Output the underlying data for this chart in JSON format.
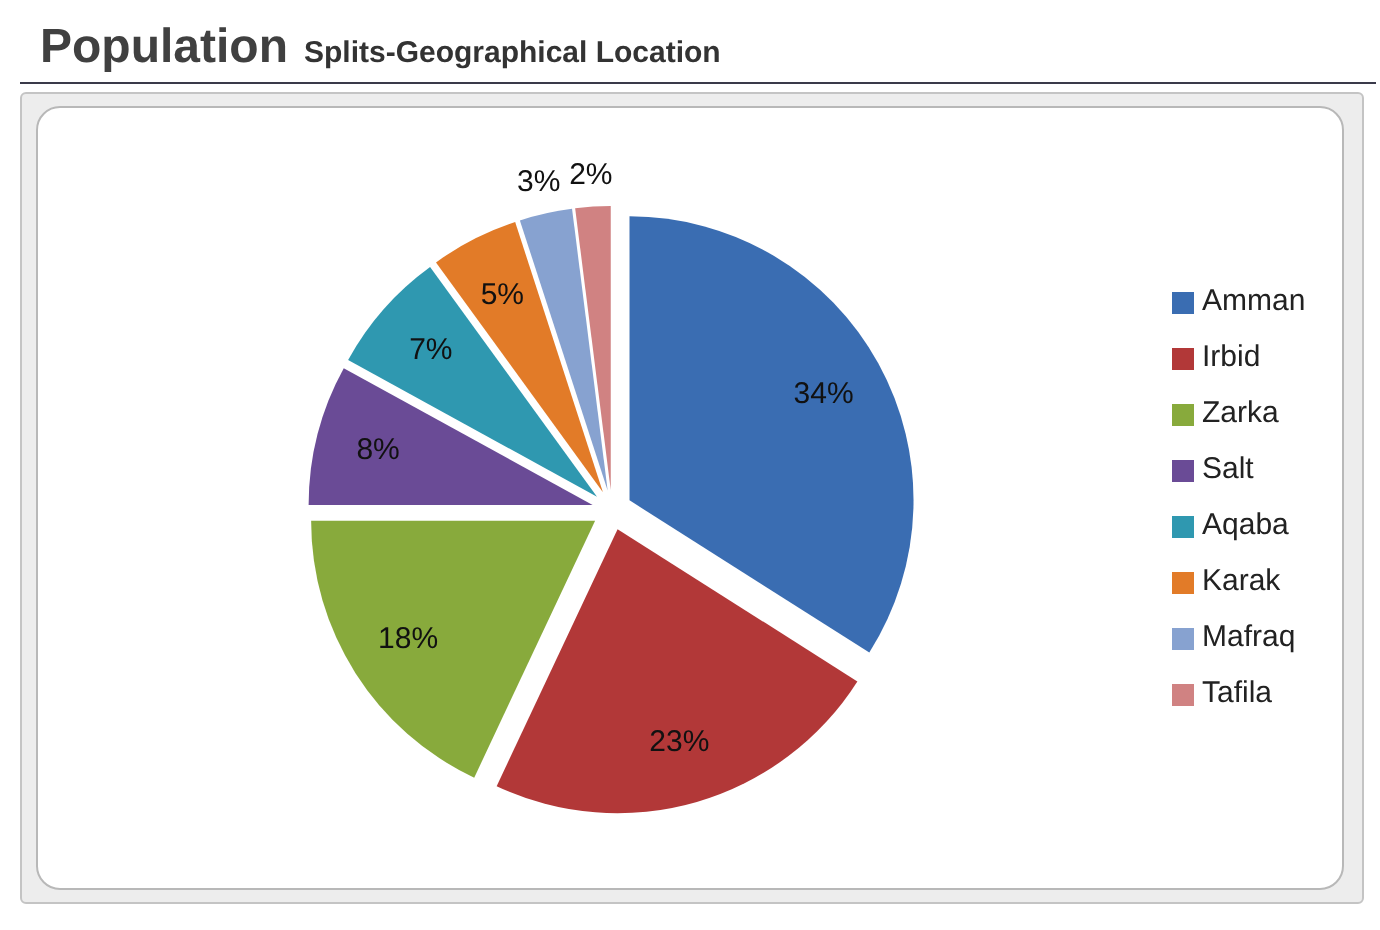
{
  "chart_data": {
    "type": "pie",
    "title": "Population",
    "subtitle": "Splits-Geographical Location",
    "categories": [
      "Amman",
      "Irbid",
      "Zarka",
      "Salt",
      "Aqaba",
      "Karak",
      "Mafraq",
      "Tafila"
    ],
    "values": [
      34,
      23,
      18,
      8,
      7,
      5,
      3,
      2
    ],
    "value_labels": [
      "34%",
      "23%",
      "18%",
      "8%",
      "7%",
      "5%",
      "3%",
      "2%"
    ],
    "colors": [
      "#3a6db2",
      "#b23838",
      "#88aa3c",
      "#6a4b96",
      "#2f98b0",
      "#e27b28",
      "#87a2d0",
      "#d08282"
    ],
    "legend": "right"
  }
}
